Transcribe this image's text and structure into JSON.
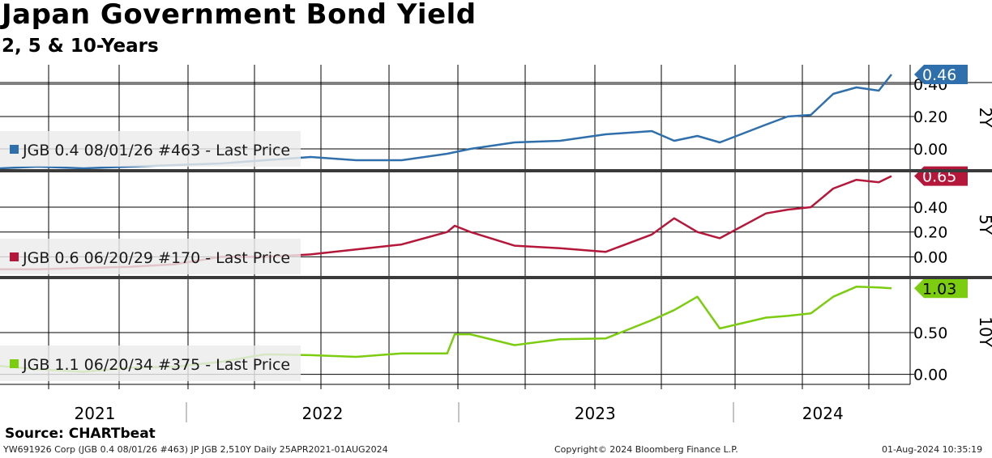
{
  "title": "Japan Government Bond Yield",
  "subtitle": "2, 5 & 10-Years",
  "source": "Source: CHARTbeat",
  "footer": {
    "left": "YW691926 Corp (JGB 0.4 08/01/26 #463) JP JGB 2,510Y  Daily 25APR2021-01AUG2024",
    "center": "Copyright© 2024 Bloomberg Finance L.P.",
    "right": "01-Aug-2024 10:35:19"
  },
  "colors": {
    "2Y": "#2f6fab",
    "5Y": "#b5173a",
    "10Y": "#7ccc10",
    "grid": "#000000"
  },
  "chart_data": [
    {
      "type": "line",
      "panel_label": "2Y",
      "legend": "JGB 0.4 08/01/26 #463 - Last Price",
      "last_value": "0.46",
      "y_ticks": [
        "0.00",
        "0.20",
        "0.40"
      ],
      "ylim": [
        -0.13,
        0.52
      ],
      "x_axis": "date",
      "x": [
        "2021-04-25",
        "2021-06-15",
        "2021-08-15",
        "2021-10-15",
        "2021-12-15",
        "2022-02-15",
        "2022-04-15",
        "2022-06-15",
        "2022-08-15",
        "2022-10-15",
        "2022-12-15",
        "2023-01-15",
        "2023-03-15",
        "2023-05-15",
        "2023-07-15",
        "2023-09-15",
        "2023-10-15",
        "2023-11-15",
        "2023-12-15",
        "2024-02-15",
        "2024-03-15",
        "2024-04-15",
        "2024-05-15",
        "2024-06-15",
        "2024-07-15",
        "2024-08-01"
      ],
      "values": [
        -0.12,
        -0.11,
        -0.12,
        -0.11,
        -0.1,
        -0.09,
        -0.07,
        -0.05,
        -0.07,
        -0.07,
        -0.03,
        0.0,
        0.04,
        0.05,
        0.09,
        0.11,
        0.05,
        0.08,
        0.04,
        0.15,
        0.2,
        0.21,
        0.34,
        0.38,
        0.36,
        0.46
      ]
    },
    {
      "type": "line",
      "panel_label": "5Y",
      "legend": "JGB 0.6 06/20/29 #170 - Last Price",
      "last_value": "0.65",
      "y_ticks": [
        "0.00",
        "0.20",
        "0.40"
      ],
      "ylim": [
        -0.16,
        0.68
      ],
      "x_axis": "date",
      "x": [
        "2021-04-25",
        "2021-06-15",
        "2021-08-15",
        "2021-10-15",
        "2021-12-15",
        "2022-02-15",
        "2022-04-15",
        "2022-06-15",
        "2022-08-15",
        "2022-10-15",
        "2022-12-15",
        "2022-12-25",
        "2023-01-15",
        "2023-03-15",
        "2023-05-15",
        "2023-07-15",
        "2023-09-15",
        "2023-10-15",
        "2023-11-15",
        "2023-12-15",
        "2024-02-15",
        "2024-03-15",
        "2024-04-15",
        "2024-05-15",
        "2024-06-15",
        "2024-07-15",
        "2024-08-01"
      ],
      "values": [
        -0.1,
        -0.1,
        -0.09,
        -0.08,
        -0.06,
        0.0,
        0.0,
        0.02,
        0.06,
        0.1,
        0.2,
        0.25,
        0.2,
        0.09,
        0.07,
        0.04,
        0.18,
        0.31,
        0.2,
        0.15,
        0.35,
        0.38,
        0.4,
        0.55,
        0.62,
        0.6,
        0.65
      ]
    },
    {
      "type": "line",
      "panel_label": "10Y",
      "legend": "JGB 1.1 06/20/34 #375 - Last Price",
      "last_value": "1.03",
      "y_ticks": [
        "0.00",
        "0.50"
      ],
      "ylim": [
        -0.12,
        1.14
      ],
      "x_axis": "date",
      "x": [
        "2021-04-25",
        "2021-06-15",
        "2021-08-15",
        "2021-10-15",
        "2021-12-15",
        "2022-02-15",
        "2022-04-15",
        "2022-06-15",
        "2022-08-15",
        "2022-10-15",
        "2022-12-15",
        "2022-12-25",
        "2023-01-15",
        "2023-03-15",
        "2023-05-15",
        "2023-07-15",
        "2023-09-15",
        "2023-10-15",
        "2023-11-15",
        "2023-12-15",
        "2024-02-15",
        "2024-03-15",
        "2024-04-15",
        "2024-05-15",
        "2024-06-15",
        "2024-07-15",
        "2024-08-01"
      ],
      "values": [
        0.1,
        0.06,
        0.03,
        0.08,
        0.09,
        0.15,
        0.24,
        0.23,
        0.21,
        0.25,
        0.25,
        0.48,
        0.48,
        0.35,
        0.42,
        0.43,
        0.65,
        0.77,
        0.93,
        0.55,
        0.68,
        0.7,
        0.73,
        0.93,
        1.05,
        1.04,
        1.03
      ]
    }
  ],
  "x_labels": [
    {
      "label": "2021",
      "date": "2021-08-30"
    },
    {
      "label": "2022",
      "date": "2022-07-01"
    },
    {
      "label": "2023",
      "date": "2023-07-01"
    },
    {
      "label": "2024",
      "date": "2024-05-01"
    }
  ]
}
